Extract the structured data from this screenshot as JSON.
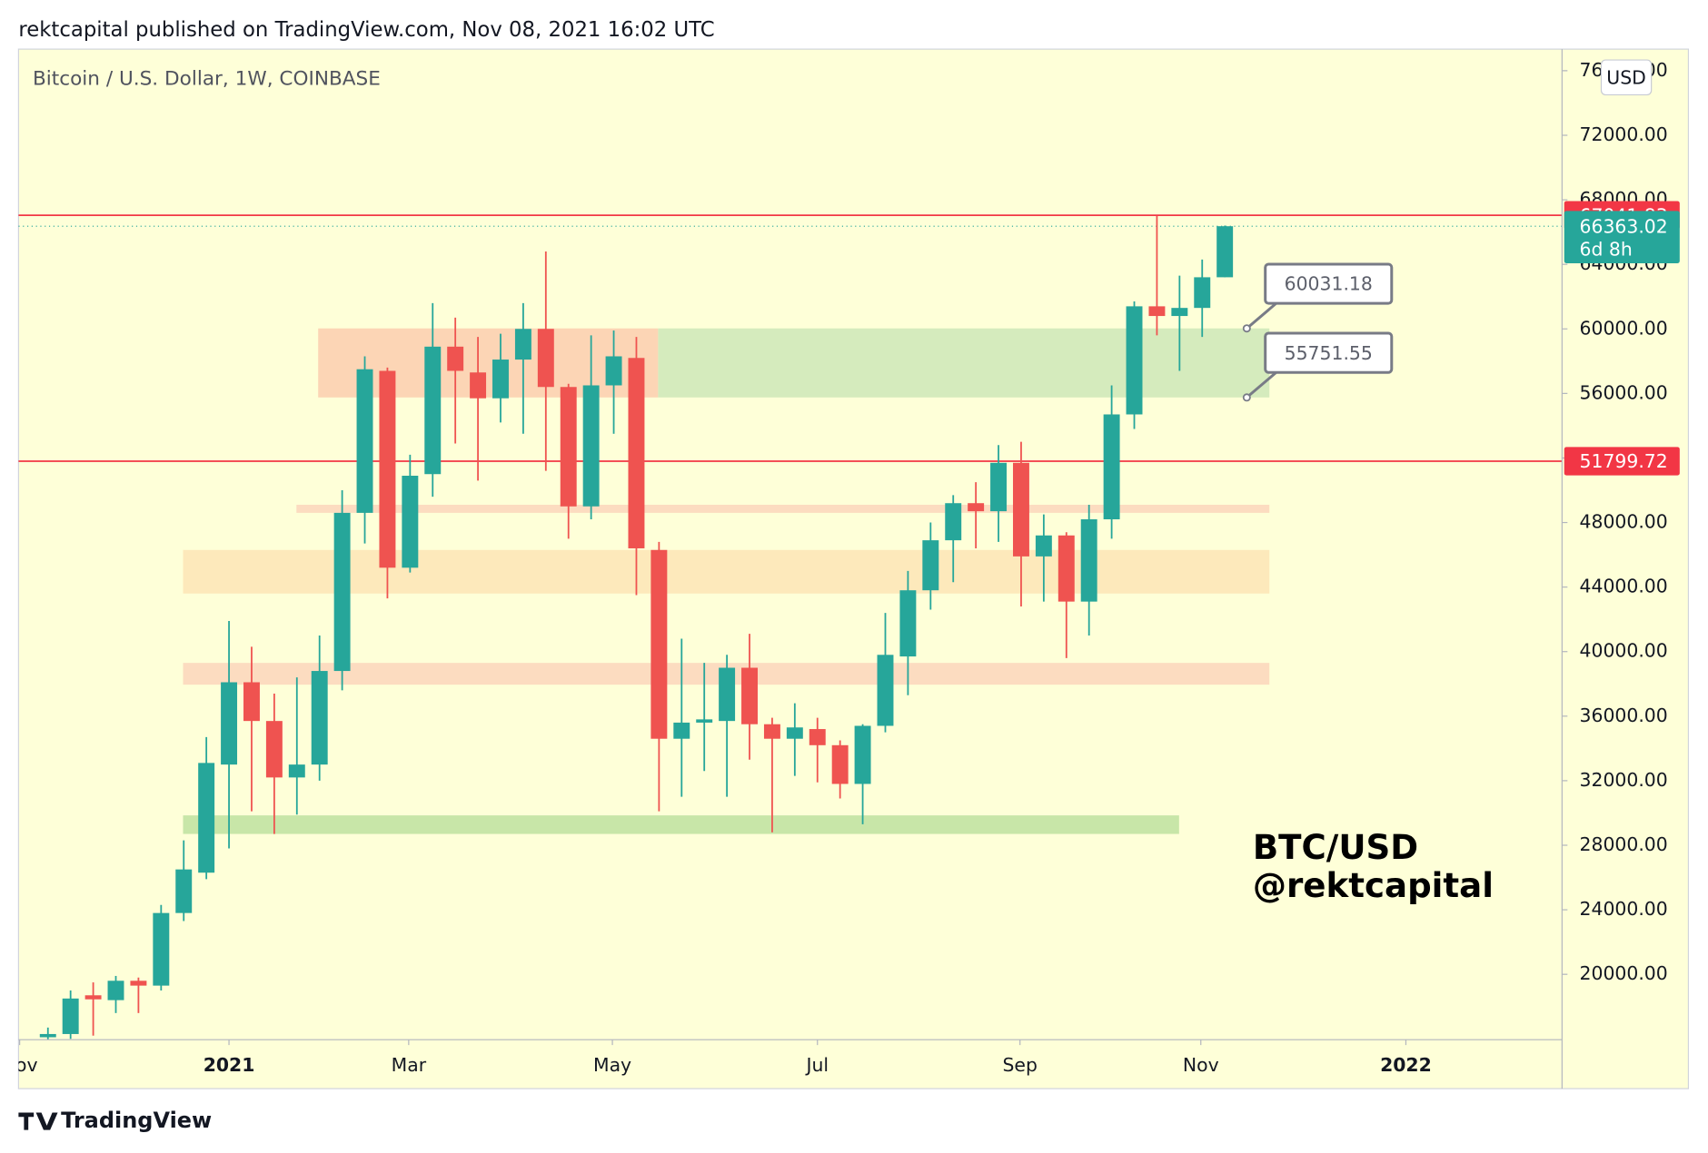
{
  "header": "rektcapital published on TradingView.com, Nov 08, 2021 16:02 UTC",
  "footer": "TradingView",
  "chart_data": {
    "type": "candlestick",
    "title": "Bitcoin / U.S. Dollar, 1W, COINBASE",
    "currency": "USD",
    "annotation": [
      "BTC/USD",
      "@rektcapital"
    ],
    "up_color": "#26a69a",
    "down_color": "#ef5350",
    "open": [
      16100,
      16300,
      18700,
      18400,
      19600,
      19300,
      23800,
      26300,
      33000,
      38100,
      35700,
      32200,
      33000,
      38800,
      48600,
      57400,
      45200,
      51000,
      58900,
      57300,
      55700,
      58100,
      60000,
      56400,
      49000,
      56500,
      58200,
      46300,
      34600,
      35600,
      35700,
      39000,
      35500,
      34600,
      35200,
      34200,
      31800,
      35400,
      39700,
      43800,
      46900,
      49200,
      48700,
      51700,
      45900,
      47200,
      43100,
      48200,
      54700,
      61400,
      60800,
      61300,
      63200
    ],
    "high": [
      16700,
      19000,
      19500,
      19900,
      19800,
      24300,
      28300,
      34700,
      41900,
      40300,
      37400,
      38400,
      41000,
      50000,
      58300,
      57600,
      52200,
      61600,
      60700,
      59500,
      59700,
      61600,
      64800,
      56600,
      59600,
      59900,
      59500,
      46800,
      40800,
      39300,
      39800,
      41100,
      35900,
      36800,
      35900,
      34500,
      35500,
      42400,
      45000,
      48000,
      49700,
      50500,
      52800,
      53000,
      48500,
      47400,
      49100,
      56500,
      61700,
      67000,
      63300,
      64300,
      66400
    ],
    "low": [
      15950,
      16000,
      16200,
      17600,
      17600,
      19000,
      23300,
      25900,
      27800,
      30100,
      28700,
      29900,
      32000,
      37600,
      46700,
      43300,
      44900,
      49600,
      52900,
      50600,
      54200,
      53500,
      51200,
      47000,
      48200,
      53500,
      43500,
      30100,
      31000,
      32600,
      31000,
      33300,
      28800,
      32300,
      31900,
      30900,
      29300,
      35000,
      37300,
      42600,
      44300,
      46400,
      46800,
      42800,
      43100,
      39600,
      41000,
      47000,
      53800,
      59600,
      57400,
      59500,
      63200
    ],
    "close": [
      16300,
      18500,
      18450,
      19600,
      19300,
      23800,
      26500,
      33100,
      38100,
      35700,
      32200,
      33000,
      38800,
      48600,
      57500,
      45200,
      50900,
      58900,
      57400,
      55700,
      58100,
      60000,
      56400,
      49000,
      56500,
      58300,
      46400,
      34600,
      35600,
      35800,
      39000,
      35500,
      34600,
      35300,
      34200,
      31800,
      35400,
      39800,
      43800,
      46900,
      49200,
      48700,
      51700,
      45900,
      47200,
      43100,
      48200,
      54700,
      61400,
      60800,
      61300,
      63200,
      66363.02
    ],
    "xlim": [
      -1.3,
      66.9
    ],
    "xticks": [
      {
        "value": -1.25,
        "label": "Nov"
      },
      {
        "value": 8.0,
        "label": "2021"
      },
      {
        "value": 15.94,
        "label": "Mar"
      },
      {
        "value": 24.94,
        "label": "May"
      },
      {
        "value": 34.0,
        "label": "Jul"
      },
      {
        "value": 42.95,
        "label": "Sep"
      },
      {
        "value": 50.94,
        "label": "Nov"
      },
      {
        "value": 60.0,
        "label": "2022"
      }
    ],
    "ylim": [
      15950,
      77340
    ],
    "yticks": [
      {
        "value": 20000,
        "label": "20000.00"
      },
      {
        "value": 24000,
        "label": "24000.00"
      },
      {
        "value": 28000,
        "label": "28000.00"
      },
      {
        "value": 32000,
        "label": "32000.00"
      },
      {
        "value": 36000,
        "label": "36000.00"
      },
      {
        "value": 40000,
        "label": "40000.00"
      },
      {
        "value": 44000,
        "label": "44000.00"
      },
      {
        "value": 48000,
        "label": "48000.00"
      },
      {
        "value": 52000,
        "label": "52000.00"
      },
      {
        "value": 56000,
        "label": "56000.00"
      },
      {
        "value": 60000,
        "label": "60000.00"
      },
      {
        "value": 64000,
        "label": "64000.00"
      },
      {
        "value": 68000,
        "label": "68000.00"
      },
      {
        "value": 72000,
        "label": "72000.00"
      },
      {
        "value": 76000,
        "label": "76000.00"
      }
    ],
    "price_lines": [
      {
        "value": 67041.83,
        "color": "#f23645"
      },
      {
        "value": 51799.72,
        "color": "#f23645"
      }
    ],
    "last_price": {
      "value": 66363.02,
      "countdown": "6d 8h",
      "color": "#26a69a"
    },
    "zones": [
      {
        "x": [
          11.94,
          26.96
        ],
        "y": [
          55751.55,
          60031.18
        ],
        "color": "#fcd5b5"
      },
      {
        "x": [
          26.96,
          53.97
        ],
        "y": [
          55751.55,
          60031.18
        ],
        "color": "#d5ebbd"
      },
      {
        "x": [
          10.98,
          53.97
        ],
        "y": [
          48600,
          49100
        ],
        "color": "#fcdcc0"
      },
      {
        "x": [
          5.97,
          53.97
        ],
        "y": [
          43600,
          46300
        ],
        "color": "#fde9bb"
      },
      {
        "x": [
          5.97,
          53.97
        ],
        "y": [
          37950,
          39300
        ],
        "color": "#fcdcc0"
      },
      {
        "x": [
          5.97,
          49.98
        ],
        "y": [
          28700,
          29850
        ],
        "color": "#c8e6a8"
      }
    ],
    "callouts": [
      {
        "value": 60031.18
      },
      {
        "value": 55751.55
      }
    ]
  }
}
